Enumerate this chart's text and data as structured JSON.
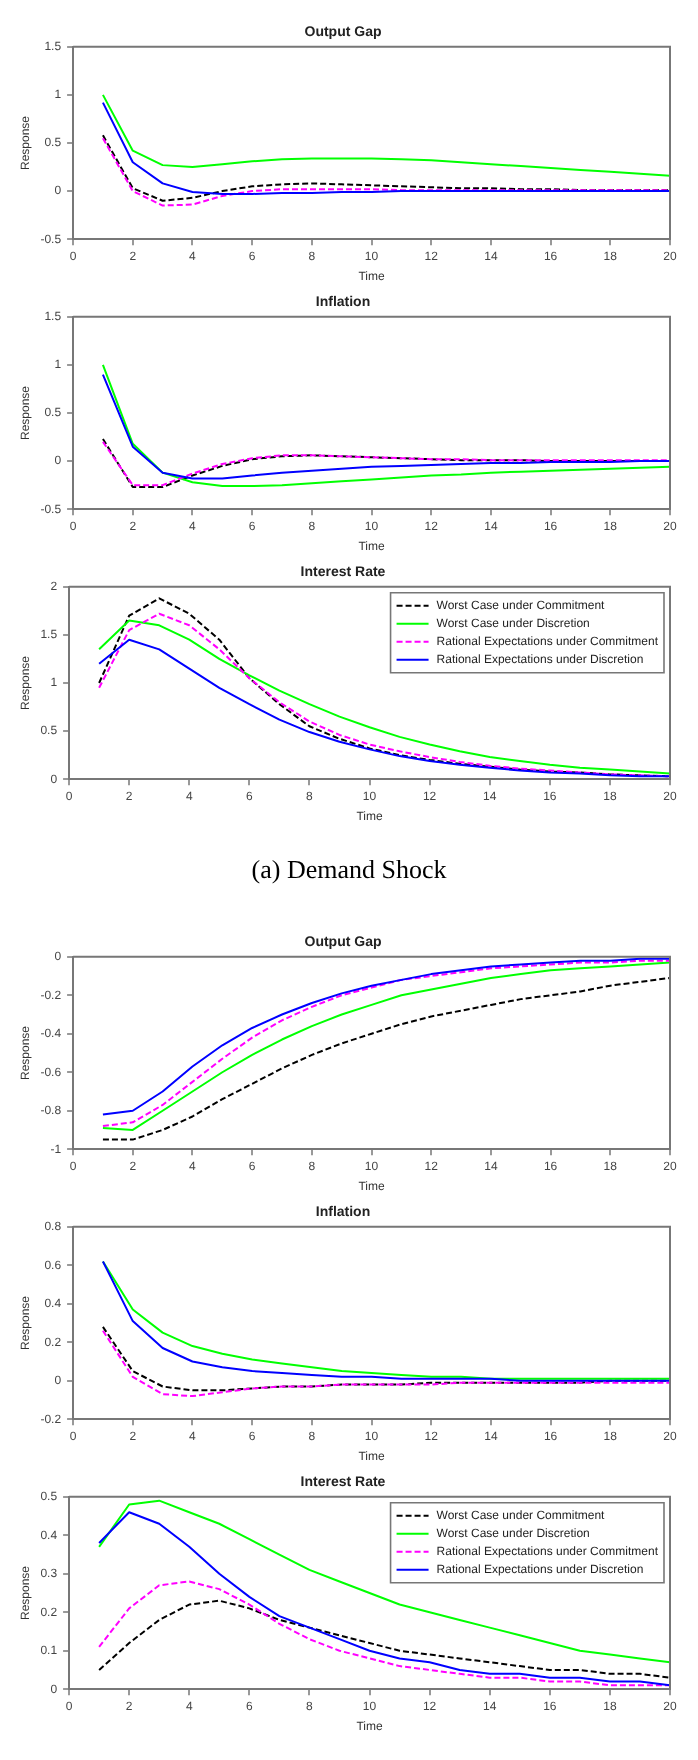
{
  "chart_data": [
    {
      "type": "line",
      "title": "Output Gap",
      "xlabel": "Time",
      "ylabel": "Response",
      "x": [
        1,
        2,
        3,
        4,
        5,
        6,
        7,
        8,
        9,
        10,
        11,
        12,
        13,
        14,
        15,
        16,
        17,
        18,
        19,
        20
      ],
      "xlim": [
        0,
        20
      ],
      "xticks": [
        0,
        2,
        4,
        6,
        8,
        10,
        12,
        14,
        16,
        18,
        20
      ],
      "ylim": [
        -0.5,
        1.5
      ],
      "yticks": [
        -0.5,
        0,
        0.5,
        1,
        1.5
      ],
      "legend": false,
      "series": [
        {
          "color": "#000000",
          "line_style": "dashed",
          "values": [
            0.58,
            0.03,
            -0.1,
            -0.07,
            0.0,
            0.05,
            0.07,
            0.08,
            0.07,
            0.06,
            0.05,
            0.04,
            0.03,
            0.03,
            0.02,
            0.02,
            0.01,
            0.01,
            0.01,
            0.01
          ]
        },
        {
          "color": "#00ff00",
          "line_style": "solid",
          "values": [
            1.0,
            0.42,
            0.27,
            0.25,
            0.28,
            0.31,
            0.33,
            0.34,
            0.34,
            0.34,
            0.33,
            0.32,
            0.3,
            0.28,
            0.26,
            0.24,
            0.22,
            0.2,
            0.18,
            0.16
          ]
        },
        {
          "color": "#ff00ff",
          "line_style": "dashed",
          "values": [
            0.55,
            0.0,
            -0.15,
            -0.14,
            -0.05,
            0.0,
            0.02,
            0.02,
            0.02,
            0.02,
            0.01,
            0.01,
            0.01,
            0.01,
            0.01,
            0.01,
            0.01,
            0.01,
            0.01,
            0.01
          ]
        },
        {
          "color": "#0000ff",
          "line_style": "solid",
          "values": [
            0.92,
            0.3,
            0.08,
            -0.01,
            -0.03,
            -0.03,
            -0.02,
            -0.02,
            -0.01,
            -0.01,
            0,
            0,
            0,
            0,
            0,
            0,
            0,
            0,
            0,
            0
          ]
        }
      ]
    },
    {
      "type": "line",
      "title": "Inflation",
      "xlabel": "Time",
      "ylabel": "Response",
      "x": [
        1,
        2,
        3,
        4,
        5,
        6,
        7,
        8,
        9,
        10,
        11,
        12,
        13,
        14,
        15,
        16,
        17,
        18,
        19,
        20
      ],
      "xlim": [
        0,
        20
      ],
      "xticks": [
        0,
        2,
        4,
        6,
        8,
        10,
        12,
        14,
        16,
        18,
        20
      ],
      "ylim": [
        -0.5,
        1.5
      ],
      "yticks": [
        -0.5,
        0,
        0.5,
        1,
        1.5
      ],
      "legend": false,
      "series": [
        {
          "color": "#000000",
          "line_style": "dashed",
          "values": [
            0.23,
            -0.27,
            -0.27,
            -0.15,
            -0.05,
            0.02,
            0.05,
            0.06,
            0.05,
            0.04,
            0.03,
            0.02,
            0.01,
            0.01,
            0.01,
            0,
            0,
            0,
            0,
            0
          ]
        },
        {
          "color": "#00ff00",
          "line_style": "solid",
          "values": [
            1.0,
            0.18,
            -0.12,
            -0.22,
            -0.26,
            -0.26,
            -0.25,
            -0.23,
            -0.21,
            -0.19,
            -0.17,
            -0.15,
            -0.14,
            -0.12,
            -0.11,
            -0.1,
            -0.09,
            -0.08,
            -0.07,
            -0.06
          ]
        },
        {
          "color": "#ff00ff",
          "line_style": "dashed",
          "values": [
            0.2,
            -0.25,
            -0.25,
            -0.13,
            -0.03,
            0.03,
            0.06,
            0.06,
            0.05,
            0.04,
            0.03,
            0.02,
            0.02,
            0.01,
            0.01,
            0.01,
            0.01,
            0.01,
            0.01,
            0.01
          ]
        },
        {
          "color": "#0000ff",
          "line_style": "solid",
          "values": [
            0.9,
            0.15,
            -0.12,
            -0.18,
            -0.18,
            -0.15,
            -0.12,
            -0.1,
            -0.08,
            -0.06,
            -0.05,
            -0.04,
            -0.03,
            -0.02,
            -0.02,
            -0.01,
            -0.01,
            -0.01,
            0,
            0
          ]
        }
      ]
    },
    {
      "type": "line",
      "title": "Interest Rate",
      "xlabel": "Time",
      "ylabel": "Response",
      "x": [
        1,
        2,
        3,
        4,
        5,
        6,
        7,
        8,
        9,
        10,
        11,
        12,
        13,
        14,
        15,
        16,
        17,
        18,
        19,
        20
      ],
      "xlim": [
        0,
        20
      ],
      "xticks": [
        0,
        2,
        4,
        6,
        8,
        10,
        12,
        14,
        16,
        18,
        20
      ],
      "ylim": [
        0,
        2
      ],
      "yticks": [
        0,
        0.5,
        1,
        1.5,
        2
      ],
      "legend": "top right",
      "annotations": [
        "(a) Demand Shock"
      ],
      "series": [
        {
          "name": "Worst Case under Commitment",
          "color": "#000000",
          "line_style": "dashed",
          "values": [
            1.0,
            1.7,
            1.88,
            1.72,
            1.45,
            1.05,
            0.78,
            0.55,
            0.42,
            0.32,
            0.25,
            0.2,
            0.16,
            0.13,
            0.1,
            0.08,
            0.07,
            0.05,
            0.04,
            0.03
          ]
        },
        {
          "name": "Worst Case under Discretion",
          "color": "#00ff00",
          "line_style": "solid",
          "values": [
            1.35,
            1.65,
            1.6,
            1.45,
            1.25,
            1.08,
            0.92,
            0.78,
            0.65,
            0.54,
            0.44,
            0.36,
            0.29,
            0.23,
            0.19,
            0.15,
            0.12,
            0.1,
            0.08,
            0.06
          ]
        },
        {
          "name": "Rational Expectations under Commitment",
          "color": "#ff00ff",
          "line_style": "dashed",
          "values": [
            0.95,
            1.55,
            1.72,
            1.6,
            1.35,
            1.05,
            0.8,
            0.6,
            0.46,
            0.36,
            0.29,
            0.23,
            0.18,
            0.14,
            0.11,
            0.09,
            0.07,
            0.05,
            0.04,
            0.03
          ]
        },
        {
          "name": "Rational Expectations under Discretion",
          "color": "#0000ff",
          "line_style": "solid",
          "values": [
            1.2,
            1.45,
            1.35,
            1.15,
            0.95,
            0.78,
            0.62,
            0.49,
            0.39,
            0.31,
            0.24,
            0.19,
            0.15,
            0.12,
            0.09,
            0.07,
            0.06,
            0.04,
            0.03,
            0.03
          ]
        }
      ]
    },
    {
      "type": "line",
      "title": "Output Gap",
      "xlabel": "Time",
      "ylabel": "Response",
      "x": [
        1,
        2,
        3,
        4,
        5,
        6,
        7,
        8,
        9,
        10,
        11,
        12,
        13,
        14,
        15,
        16,
        17,
        18,
        19,
        20
      ],
      "xlim": [
        0,
        20
      ],
      "xticks": [
        0,
        2,
        4,
        6,
        8,
        10,
        12,
        14,
        16,
        18,
        20
      ],
      "ylim": [
        -1,
        0
      ],
      "yticks": [
        -1,
        -0.8,
        -0.6,
        -0.4,
        -0.2,
        0
      ],
      "legend": false,
      "series": [
        {
          "color": "#000000",
          "line_style": "dashed",
          "values": [
            -0.95,
            -0.95,
            -0.9,
            -0.83,
            -0.74,
            -0.66,
            -0.58,
            -0.51,
            -0.45,
            -0.4,
            -0.35,
            -0.31,
            -0.28,
            -0.25,
            -0.22,
            -0.2,
            -0.18,
            -0.15,
            -0.13,
            -0.11
          ]
        },
        {
          "color": "#00ff00",
          "line_style": "solid",
          "values": [
            -0.89,
            -0.9,
            -0.8,
            -0.7,
            -0.6,
            -0.51,
            -0.43,
            -0.36,
            -0.3,
            -0.25,
            -0.2,
            -0.17,
            -0.14,
            -0.11,
            -0.09,
            -0.07,
            -0.06,
            -0.05,
            -0.04,
            -0.03
          ]
        },
        {
          "color": "#ff00ff",
          "line_style": "dashed",
          "values": [
            -0.88,
            -0.86,
            -0.77,
            -0.65,
            -0.53,
            -0.42,
            -0.33,
            -0.26,
            -0.2,
            -0.16,
            -0.12,
            -0.1,
            -0.08,
            -0.06,
            -0.05,
            -0.04,
            -0.03,
            -0.03,
            -0.02,
            -0.02
          ]
        },
        {
          "color": "#0000ff",
          "line_style": "solid",
          "values": [
            -0.82,
            -0.8,
            -0.7,
            -0.57,
            -0.46,
            -0.37,
            -0.3,
            -0.24,
            -0.19,
            -0.15,
            -0.12,
            -0.09,
            -0.07,
            -0.05,
            -0.04,
            -0.03,
            -0.02,
            -0.02,
            -0.01,
            -0.01
          ]
        }
      ]
    },
    {
      "type": "line",
      "title": "Inflation",
      "xlabel": "Time",
      "ylabel": "Response",
      "x": [
        1,
        2,
        3,
        4,
        5,
        6,
        7,
        8,
        9,
        10,
        11,
        12,
        13,
        14,
        15,
        16,
        17,
        18,
        19,
        20
      ],
      "xlim": [
        0,
        20
      ],
      "xticks": [
        0,
        2,
        4,
        6,
        8,
        10,
        12,
        14,
        16,
        18,
        20
      ],
      "ylim": [
        -0.2,
        0.8
      ],
      "yticks": [
        -0.2,
        0,
        0.2,
        0.4,
        0.6,
        0.8
      ],
      "legend": false,
      "series": [
        {
          "color": "#000000",
          "line_style": "dashed",
          "values": [
            0.28,
            0.05,
            -0.03,
            -0.05,
            -0.05,
            -0.04,
            -0.03,
            -0.03,
            -0.02,
            -0.02,
            -0.02,
            -0.01,
            -0.01,
            -0.01,
            -0.01,
            -0.01,
            -0.01,
            0,
            0,
            0
          ]
        },
        {
          "color": "#00ff00",
          "line_style": "solid",
          "values": [
            0.62,
            0.37,
            0.25,
            0.18,
            0.14,
            0.11,
            0.09,
            0.07,
            0.05,
            0.04,
            0.03,
            0.02,
            0.02,
            0.01,
            0.01,
            0.01,
            0.01,
            0.01,
            0.01,
            0.01
          ]
        },
        {
          "color": "#ff00ff",
          "line_style": "dashed",
          "values": [
            0.26,
            0.02,
            -0.07,
            -0.08,
            -0.06,
            -0.04,
            -0.03,
            -0.03,
            -0.02,
            -0.02,
            -0.02,
            -0.02,
            -0.01,
            -0.01,
            -0.01,
            -0.01,
            -0.01,
            -0.01,
            -0.01,
            -0.01
          ]
        },
        {
          "color": "#0000ff",
          "line_style": "solid",
          "values": [
            0.62,
            0.31,
            0.17,
            0.1,
            0.07,
            0.05,
            0.04,
            0.03,
            0.02,
            0.02,
            0.01,
            0.01,
            0.01,
            0.01,
            0,
            0,
            0,
            0,
            0,
            0
          ]
        }
      ]
    },
    {
      "type": "line",
      "title": "Interest Rate",
      "xlabel": "Time",
      "ylabel": "Response",
      "x": [
        1,
        2,
        3,
        4,
        5,
        6,
        7,
        8,
        9,
        10,
        11,
        12,
        13,
        14,
        15,
        16,
        17,
        18,
        19,
        20
      ],
      "xlim": [
        0,
        20
      ],
      "xticks": [
        0,
        2,
        4,
        6,
        8,
        10,
        12,
        14,
        16,
        18,
        20
      ],
      "ylim": [
        0,
        0.5
      ],
      "yticks": [
        0,
        0.1,
        0.2,
        0.3,
        0.4,
        0.5
      ],
      "legend": "top right",
      "series": [
        {
          "name": "Worst Case under Commitment",
          "color": "#000000",
          "line_style": "dashed",
          "values": [
            0.05,
            0.12,
            0.18,
            0.22,
            0.23,
            0.21,
            0.18,
            0.16,
            0.14,
            0.12,
            0.1,
            0.09,
            0.08,
            0.07,
            0.06,
            0.05,
            0.05,
            0.04,
            0.04,
            0.03
          ]
        },
        {
          "name": "Worst Case under Discretion",
          "color": "#00ff00",
          "line_style": "solid",
          "values": [
            0.37,
            0.48,
            0.49,
            0.46,
            0.43,
            0.39,
            0.35,
            0.31,
            0.28,
            0.25,
            0.22,
            0.2,
            0.18,
            0.16,
            0.14,
            0.12,
            0.1,
            0.09,
            0.08,
            0.07
          ]
        },
        {
          "name": "Rational Expectations under Commitment",
          "color": "#ff00ff",
          "line_style": "dashed",
          "values": [
            0.11,
            0.21,
            0.27,
            0.28,
            0.26,
            0.22,
            0.17,
            0.13,
            0.1,
            0.08,
            0.06,
            0.05,
            0.04,
            0.03,
            0.03,
            0.02,
            0.02,
            0.01,
            0.01,
            0.01
          ]
        },
        {
          "name": "Rational Expectations under Discretion",
          "color": "#0000ff",
          "line_style": "solid",
          "values": [
            0.38,
            0.46,
            0.43,
            0.37,
            0.3,
            0.24,
            0.19,
            0.16,
            0.13,
            0.1,
            0.08,
            0.07,
            0.05,
            0.04,
            0.04,
            0.03,
            0.03,
            0.02,
            0.02,
            0.01
          ]
        }
      ]
    }
  ]
}
